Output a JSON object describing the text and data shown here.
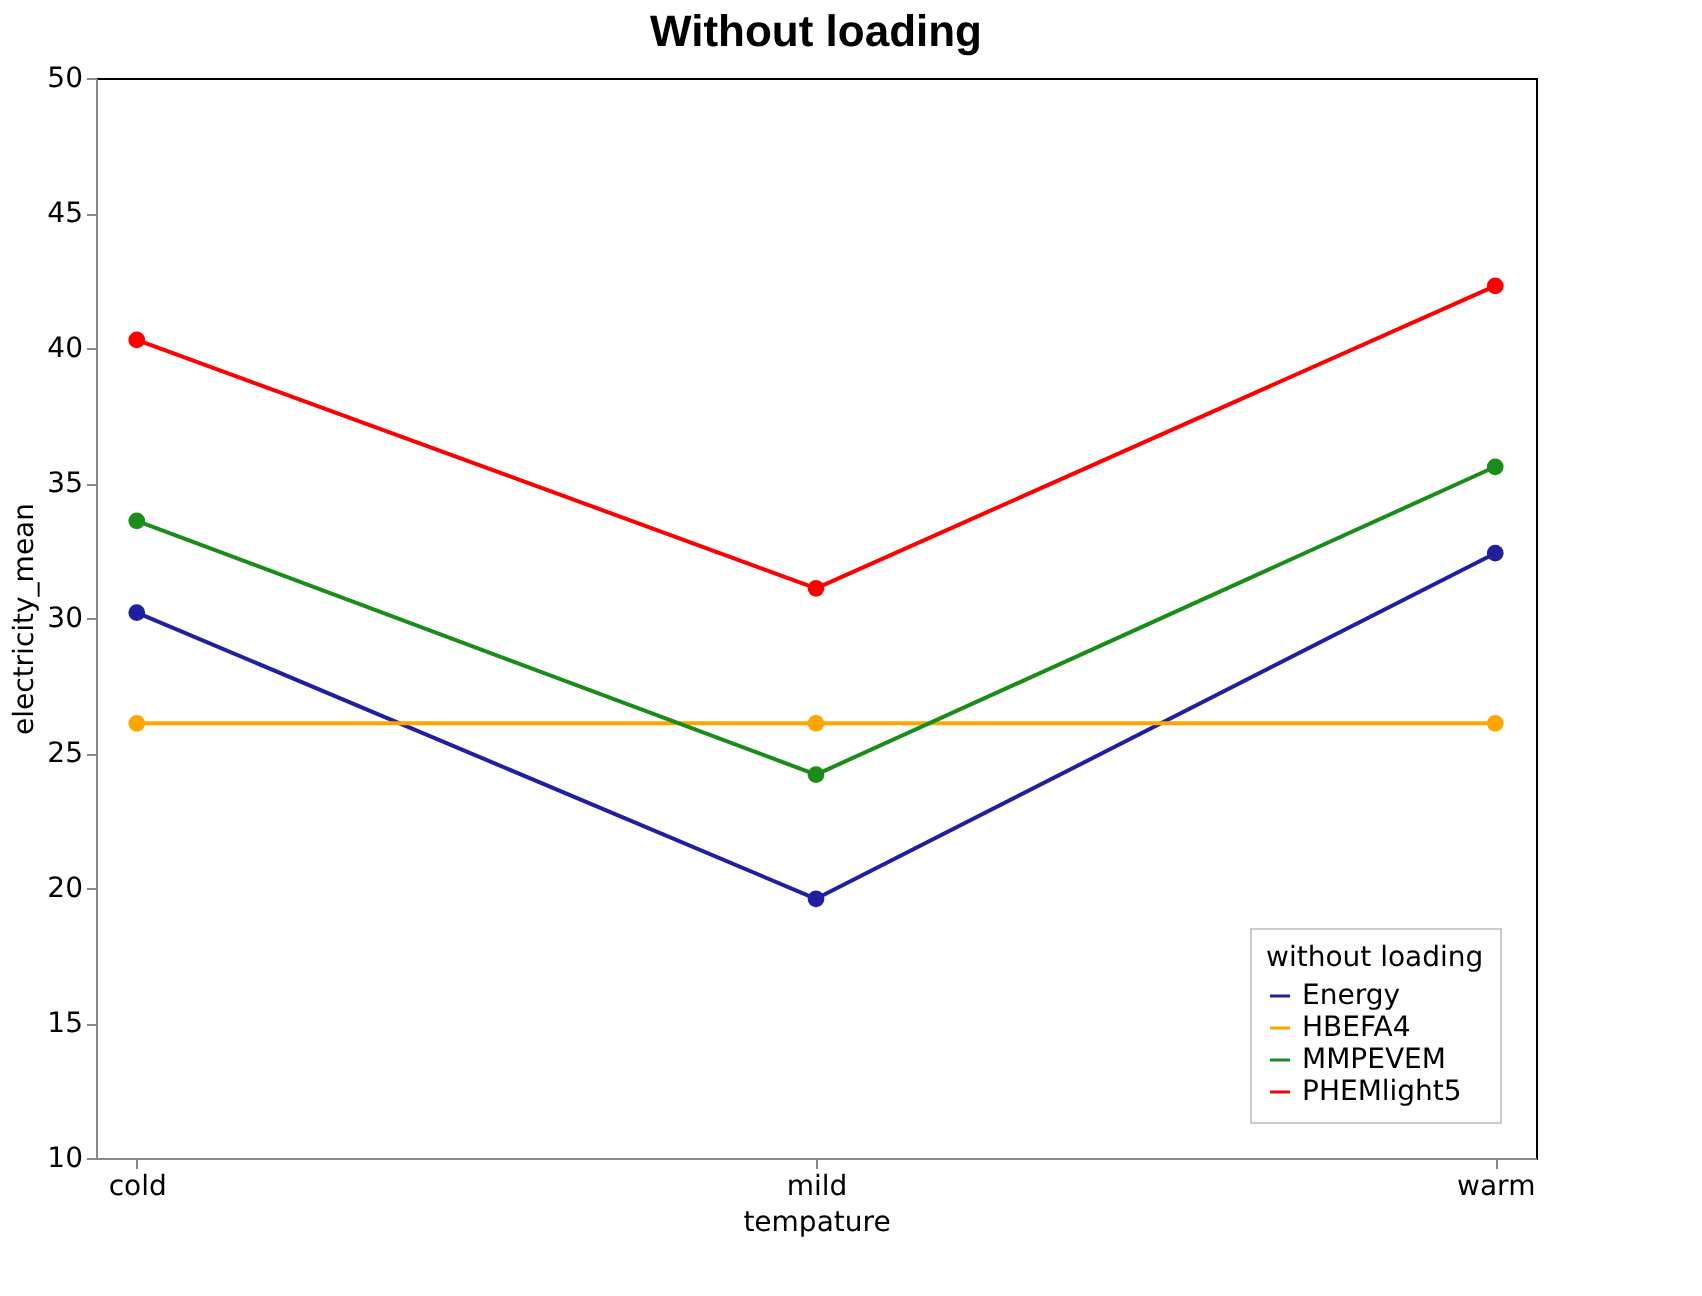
{
  "chart_data": {
    "type": "line",
    "title": "Without loading",
    "xlabel": "tempature",
    "ylabel": "electricity_mean",
    "legend_title": "without loading",
    "categories": [
      "cold",
      "mild",
      "warm"
    ],
    "series": [
      {
        "name": "Energy",
        "color": "#1f1fa0",
        "values": [
          30.2,
          19.6,
          32.4
        ]
      },
      {
        "name": "HBEFA4",
        "color": "#ffa500",
        "values": [
          26.1,
          26.1,
          26.1
        ]
      },
      {
        "name": "MMPEVEM",
        "color": "#1a8c1a",
        "values": [
          33.6,
          24.2,
          35.6
        ]
      },
      {
        "name": "PHEMlight5",
        "color": "#ff0000",
        "values": [
          40.3,
          31.1,
          42.3
        ]
      }
    ],
    "ylim": [
      10,
      50
    ],
    "yticks": [
      10,
      15,
      20,
      25,
      30,
      35,
      40,
      45,
      50
    ],
    "grid": false,
    "legend": "bottom right",
    "marker": "circle",
    "line_style": "solid"
  }
}
